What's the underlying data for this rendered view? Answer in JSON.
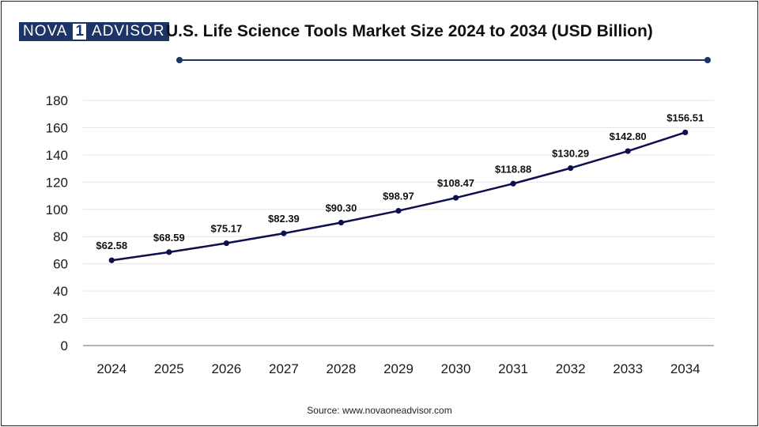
{
  "logo": {
    "part1": "NOVA",
    "part2": "1",
    "part3": "ADVISOR"
  },
  "header": {
    "title": "U.S. Life Science Tools Market Size 2024 to 2034 (USD Billion)"
  },
  "footer": {
    "source": "Source: www.novaoneadvisor.com"
  },
  "colors": {
    "line": "#0d0f4f",
    "accent": "#1c3566",
    "grid": "#e6e6e6"
  },
  "chart_data": {
    "type": "line",
    "title": "U.S. Life Science Tools Market Size 2024 to 2034 (USD Billion)",
    "xlabel": "",
    "ylabel": "",
    "ylim": [
      0,
      180
    ],
    "yticks": [
      0,
      20,
      40,
      60,
      80,
      100,
      120,
      140,
      160,
      180
    ],
    "grid": true,
    "legend": "none",
    "categories": [
      "2024",
      "2025",
      "2026",
      "2027",
      "2028",
      "2029",
      "2030",
      "2031",
      "2032",
      "2033",
      "2034"
    ],
    "series": [
      {
        "values": [
          62.58,
          68.59,
          75.17,
          82.39,
          90.3,
          98.97,
          108.47,
          118.88,
          130.29,
          142.8,
          156.51
        ],
        "labels": [
          "$62.58",
          "$68.59",
          "$75.17",
          "$82.39",
          "$90.30",
          "$98.97",
          "$108.47",
          "$118.88",
          "$130.29",
          "$142.80",
          "$156.51"
        ]
      }
    ]
  }
}
